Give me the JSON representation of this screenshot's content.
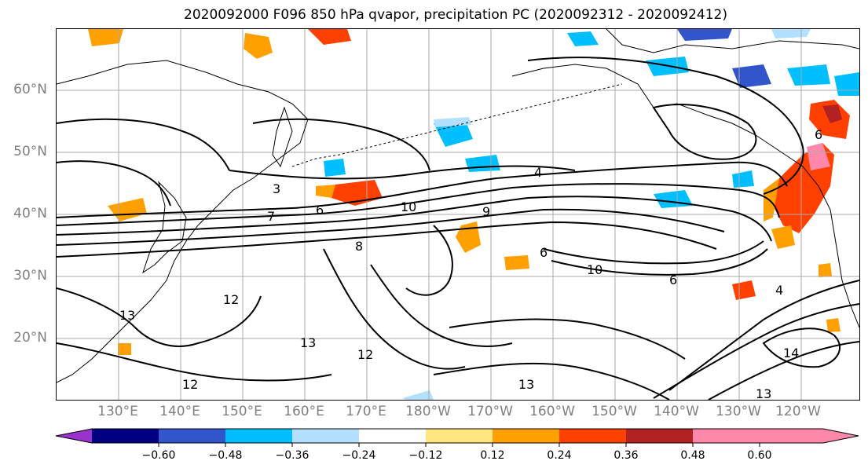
{
  "title": "2020092000 F096 850 hPa qvapor, precipitation PC (2020092312 - 2020092412)",
  "lat_labels": [
    "60°N",
    "50°N",
    "40°N",
    "30°N",
    "20°N"
  ],
  "lon_labels": [
    "130°E",
    "140°E",
    "150°E",
    "160°E",
    "170°E",
    "180°W",
    "170°W",
    "160°W",
    "150°W",
    "140°W",
    "130°W",
    "120°W"
  ],
  "contour_labels": [
    "3",
    "4",
    "4",
    "6",
    "6",
    "6",
    "6",
    "7",
    "8",
    "9",
    "10",
    "10",
    "12",
    "12",
    "12",
    "13",
    "13",
    "13",
    "13",
    "14"
  ],
  "colorbar": {
    "tick_labels": [
      "−0.60",
      "−0.48",
      "−0.36",
      "−0.24",
      "−0.12",
      "0.12",
      "0.24",
      "0.36",
      "0.48",
      "0.60"
    ],
    "colors": [
      "#9933cc",
      "#000080",
      "#3355cc",
      "#00bfff",
      "#b3e0ff",
      "#ffffff",
      "#ffe680",
      "#ffa000",
      "#ff4000",
      "#b22222",
      "#ff88aa"
    ]
  }
}
